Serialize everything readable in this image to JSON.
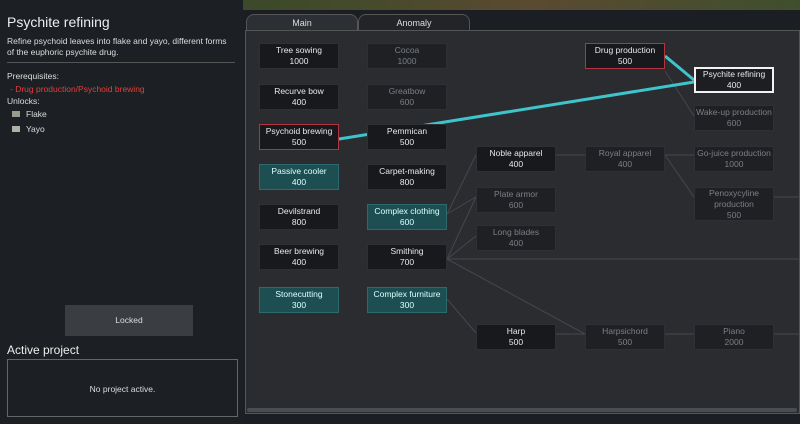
{
  "left_panel": {
    "title": "Psychite refining",
    "description": "Refine psychoid leaves into flake and yayo, different forms of the euphoric psychite drug.",
    "prerequisites_label": "Prerequisites:",
    "prerequisites": "- Drug production/Psychoid brewing",
    "unlocks_label": "Unlocks:",
    "unlocks": [
      "Flake",
      "Yayo"
    ],
    "button": "Locked",
    "active_project_title": "Active project",
    "active_project": "No project active."
  },
  "tabs": [
    "Main",
    "Anomaly"
  ],
  "nodes": [
    {
      "label": "Tree sowing",
      "cost": 1000
    },
    {
      "label": "Recurve bow",
      "cost": 400
    },
    {
      "label": "Psychoid brewing",
      "cost": 500
    },
    {
      "label": "Passive cooler",
      "cost": 400
    },
    {
      "label": "Devilstrand",
      "cost": 800
    },
    {
      "label": "Beer brewing",
      "cost": 400
    },
    {
      "label": "Stonecutting",
      "cost": 300
    },
    {
      "label": "Cocoa",
      "cost": 1000
    },
    {
      "label": "Greatbow",
      "cost": 600
    },
    {
      "label": "Pemmican",
      "cost": 500
    },
    {
      "label": "Carpet-making",
      "cost": 800
    },
    {
      "label": "Complex clothing",
      "cost": 600
    },
    {
      "label": "Smithing",
      "cost": 700
    },
    {
      "label": "Complex furniture",
      "cost": 300
    },
    {
      "label": "Noble apparel",
      "cost": 400
    },
    {
      "label": "Plate armor",
      "cost": 600
    },
    {
      "label": "Long blades",
      "cost": 400
    },
    {
      "label": "Harp",
      "cost": 500
    },
    {
      "label": "Drug production",
      "cost": 500
    },
    {
      "label": "Royal apparel",
      "cost": 400
    },
    {
      "label": "Harpsichord",
      "cost": 500
    },
    {
      "label": "Psychite refining",
      "cost": 400
    },
    {
      "label": "Wake-up production",
      "cost": 600
    },
    {
      "label": "Go-juice production",
      "cost": 1000
    },
    {
      "label": "Penoxycyline production",
      "cost": 500
    },
    {
      "label": "Piano",
      "cost": 2000
    }
  ]
}
